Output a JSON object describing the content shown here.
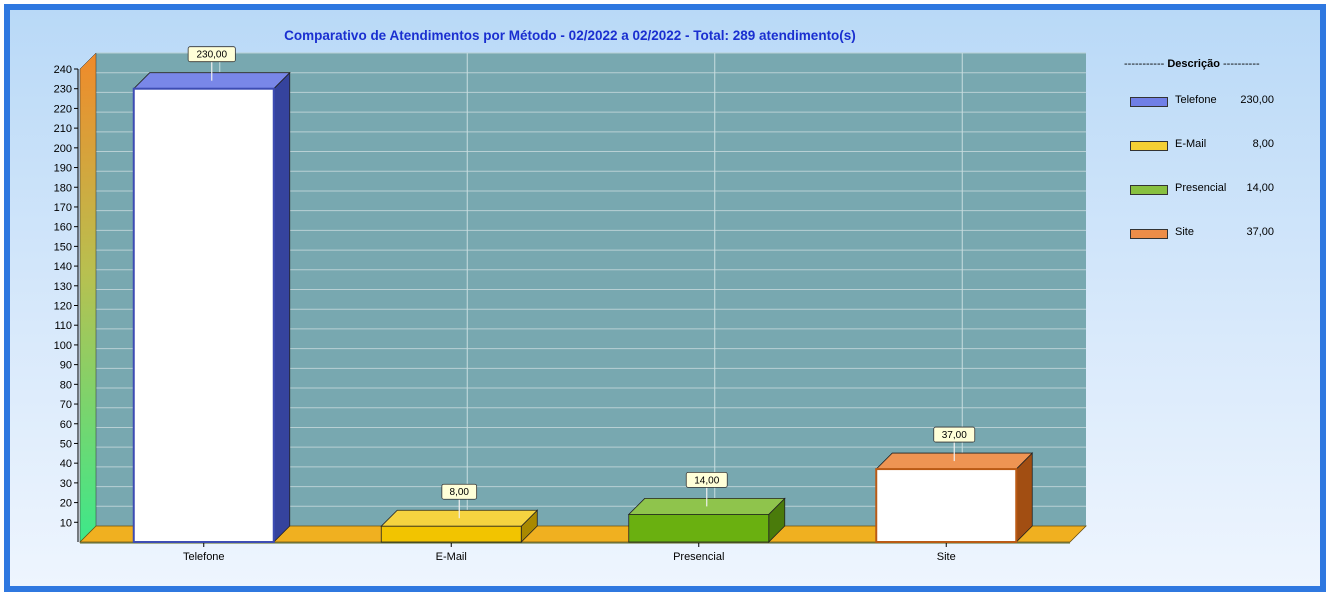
{
  "chart_data": {
    "type": "bar",
    "title": "Comparativo de Atendimentos por Método - 02/2022 a 02/2022 - Total: 289 atendimento(s)",
    "categories": [
      "Telefone",
      "E-Mail",
      "Presencial",
      "Site"
    ],
    "values": [
      230,
      8,
      14,
      37
    ],
    "value_labels": [
      "230,00",
      "8,00",
      "14,00",
      "37,00"
    ],
    "colors": [
      "#4c5fe0",
      "#f2c400",
      "#6ab010",
      "#e8701a"
    ],
    "y_ticks": [
      10,
      20,
      30,
      40,
      50,
      60,
      70,
      80,
      90,
      100,
      110,
      120,
      130,
      140,
      150,
      160,
      170,
      180,
      190,
      200,
      210,
      220,
      230,
      240
    ],
    "ylim": [
      0,
      240
    ],
    "grid": true,
    "three_d": true,
    "legend_position": "right",
    "legend": {
      "header_prefix": "-----------",
      "header_title": "Descrição",
      "header_suffix": "----------",
      "items": [
        {
          "label": "Telefone",
          "value": "230,00"
        },
        {
          "label": "E-Mail",
          "value": "8,00"
        },
        {
          "label": "Presencial",
          "value": "14,00"
        },
        {
          "label": "Site",
          "value": "37,00"
        }
      ]
    }
  }
}
